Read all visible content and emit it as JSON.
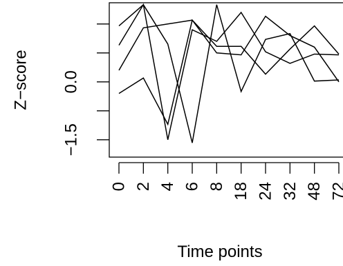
{
  "chart_data": {
    "type": "line",
    "title": "",
    "xlabel": "Time points",
    "ylabel": "Z−score",
    "categories": [
      "0",
      "2",
      "4",
      "6",
      "8",
      "18",
      "24",
      "32",
      "48",
      "72"
    ],
    "y_ticks": [
      -1.5,
      -0.75,
      0.0,
      0.75,
      1.5
    ],
    "y_tick_labels": [
      "−1.5",
      "",
      "0.0",
      "",
      ""
    ],
    "ylim": [
      -1.95,
      2.05
    ],
    "grid": false,
    "series": [
      {
        "values": [
          1.45,
          2.0,
          0.98,
          -1.58,
          2.0,
          -0.25,
          1.1,
          1.25,
          0.02,
          0.05
        ]
      },
      {
        "values": [
          0.95,
          2.0,
          -1.5,
          1.35,
          1.05,
          1.8,
          0.78,
          0.48,
          0.72,
          0.7
        ]
      },
      {
        "values": [
          0.3,
          1.4,
          1.5,
          1.6,
          0.75,
          0.7,
          1.7,
          1.2,
          0.9,
          0.0
        ]
      },
      {
        "values": [
          -0.3,
          0.1,
          -1.1,
          1.6,
          0.92,
          0.92,
          0.2,
          0.85,
          1.45,
          0.72
        ]
      }
    ]
  }
}
